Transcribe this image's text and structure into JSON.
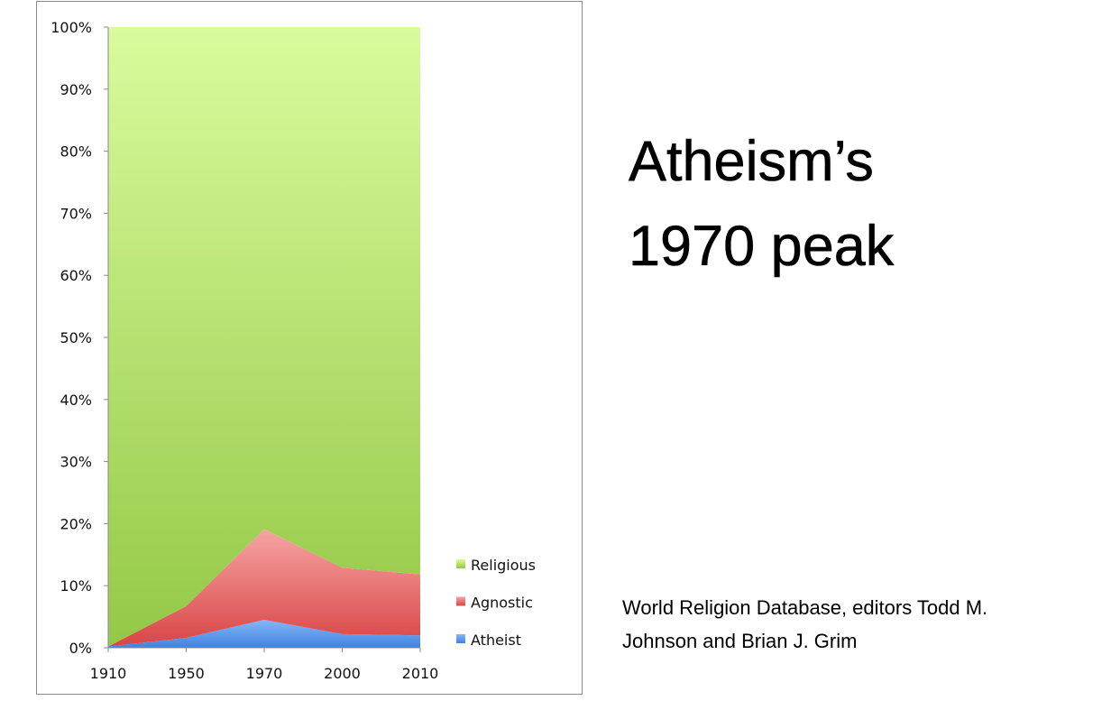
{
  "headline": {
    "line1": "Atheism’s",
    "line2": "1970 peak"
  },
  "source": "World Religion Database, editors Todd M. Johnson and Brian J. Grim",
  "chart_data": {
    "type": "area",
    "stacked": true,
    "percent": true,
    "categories": [
      "1910",
      "1950",
      "1970",
      "2000",
      "2010"
    ],
    "series": [
      {
        "name": "Atheist",
        "values": [
          0.2,
          1.6,
          4.5,
          2.2,
          2.0
        ],
        "color": "#5b9bf0"
      },
      {
        "name": "Agnostic",
        "values": [
          0.0,
          5.1,
          14.6,
          10.7,
          9.8
        ],
        "color": "#e04a4a"
      },
      {
        "name": "Religious",
        "values": [
          99.8,
          93.3,
          80.9,
          87.1,
          88.2
        ],
        "color": "#9fcf52"
      }
    ],
    "ylim": [
      0,
      100
    ],
    "yticks": [
      "0%",
      "10%",
      "20%",
      "30%",
      "40%",
      "50%",
      "60%",
      "70%",
      "80%",
      "90%",
      "100%"
    ],
    "title": "",
    "xlabel": "",
    "ylabel": "",
    "legend": "right",
    "grid": false
  }
}
